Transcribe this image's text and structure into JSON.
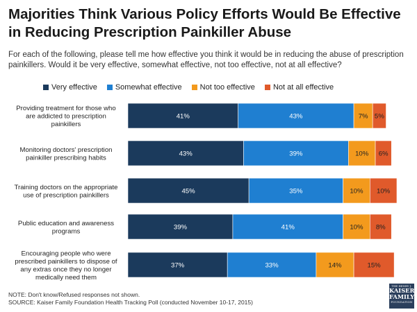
{
  "title": "Majorities Think Various Policy Efforts Would Be Effective in Reducing Prescription Painkiller Abuse",
  "subtitle": "For each of the following, please tell me how effective you think it would be in reducing the abuse of prescription painkillers. Would it be very effective, somewhat effective, not too effective, not at all effective?",
  "note": "NOTE: Don't know/Refused responses not shown.",
  "source": "SOURCE: Kaiser Family Foundation Health Tracking Poll (conducted November 10-17, 2015)",
  "logo": {
    "line1": "THE HENRY J.",
    "line2": "KAISER",
    "line3": "FAMILY",
    "line4": "FOUNDATION"
  },
  "chart_data": {
    "type": "bar",
    "orientation": "horizontal",
    "stacked": true,
    "title": "Majorities Think Various Policy Efforts Would Be Effective in Reducing Prescription Painkiller Abuse",
    "xlabel": "",
    "ylabel": "",
    "xlim": [
      0,
      100
    ],
    "grid": false,
    "legend_position": "top",
    "categories": [
      [
        "Providing treatment for those who",
        "are addicted to prescription",
        "painkillers"
      ],
      [
        "Monitoring doctors' prescription",
        "painkiller prescribing habits"
      ],
      [
        "Training doctors on the appropriate",
        "use of prescription painkillers"
      ],
      [
        "Public education and awareness",
        "programs"
      ],
      [
        "Encouraging people who were",
        "prescribed painkillers to dispose of",
        "any extras once they no longer",
        "medically need them"
      ]
    ],
    "series": [
      {
        "name": "Very effective",
        "color": "#1b3a5c",
        "label_color": "#ffffff",
        "values": [
          41,
          43,
          45,
          39,
          37
        ]
      },
      {
        "name": "Somewhat effective",
        "color": "#1f7fd1",
        "label_color": "#ffffff",
        "values": [
          43,
          39,
          35,
          41,
          33
        ]
      },
      {
        "name": "Not too effective",
        "color": "#f39a1d",
        "label_color": "#222222",
        "values": [
          7,
          10,
          10,
          10,
          14
        ]
      },
      {
        "name": "Not at all effective",
        "color": "#e05a2b",
        "label_color": "#222222",
        "values": [
          5,
          6,
          10,
          8,
          15
        ]
      }
    ],
    "value_suffix": "%"
  }
}
